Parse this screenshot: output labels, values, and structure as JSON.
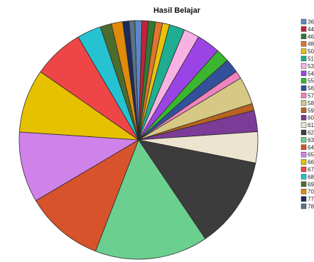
{
  "chart_data": {
    "type": "pie",
    "title": "Hasil Belajar",
    "legend_position": "right",
    "start_angle_deg": -1.8,
    "direction": "clockwise",
    "slices": [
      {
        "label": "36",
        "value": 1.0,
        "color": "#5b87c7"
      },
      {
        "label": "44",
        "value": 0.9,
        "color": "#c2223a"
      },
      {
        "label": "46",
        "value": 1.0,
        "color": "#2f7a34"
      },
      {
        "label": "48",
        "value": 1.0,
        "color": "#e0752b"
      },
      {
        "label": "50",
        "value": 1.0,
        "color": "#e7c20e"
      },
      {
        "label": "51",
        "value": 2.2,
        "color": "#1fae92"
      },
      {
        "label": "53",
        "value": 2.2,
        "color": "#f7b2e3"
      },
      {
        "label": "54",
        "value": 3.3,
        "color": "#9b44e6"
      },
      {
        "label": "55",
        "value": 1.9,
        "color": "#3ab62f"
      },
      {
        "label": "56",
        "value": 2.0,
        "color": "#33519b"
      },
      {
        "label": "57",
        "value": 1.1,
        "color": "#ee84bd"
      },
      {
        "label": "58",
        "value": 3.9,
        "color": "#d7c886"
      },
      {
        "label": "59",
        "value": 1.0,
        "color": "#b8631f"
      },
      {
        "label": "60",
        "value": 3.0,
        "color": "#7c3b97"
      },
      {
        "label": "61",
        "value": 4.4,
        "color": "#ece4cf"
      },
      {
        "label": "62",
        "value": 13.0,
        "color": "#3c3c3c"
      },
      {
        "label": "63",
        "value": 16.0,
        "color": "#6bcf8f"
      },
      {
        "label": "64",
        "value": 11.1,
        "color": "#d7532b"
      },
      {
        "label": "65",
        "value": 10.0,
        "color": "#cf82ea"
      },
      {
        "label": "66",
        "value": 9.0,
        "color": "#e5c100"
      },
      {
        "label": "67",
        "value": 7.2,
        "color": "#ee4646"
      },
      {
        "label": "68",
        "value": 3.4,
        "color": "#25c3d2"
      },
      {
        "label": "69",
        "value": 1.6,
        "color": "#4d6b2c"
      },
      {
        "label": "70",
        "value": 1.6,
        "color": "#e08a0a"
      },
      {
        "label": "77",
        "value": 0.9,
        "color": "#1e2a5a"
      },
      {
        "label": "78",
        "value": 0.8,
        "color": "#5c7287"
      }
    ]
  }
}
